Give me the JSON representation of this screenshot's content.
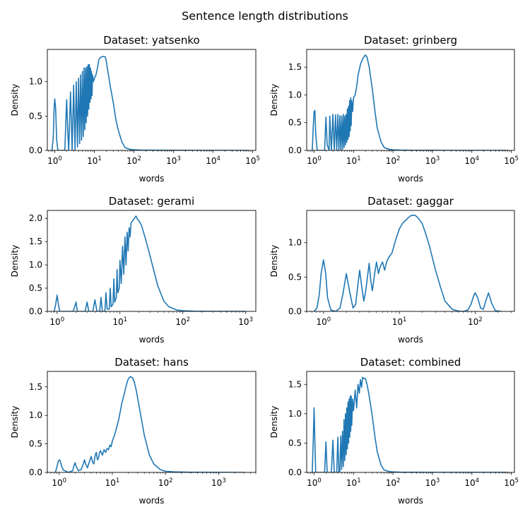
{
  "suptitle": "Sentence length distributions",
  "chart_data": [
    {
      "type": "line",
      "title": "Dataset: yatsenko",
      "xlabel": "words",
      "ylabel": "Density",
      "xscale": "log",
      "xlim": [
        0.65,
        120000
      ],
      "ylim": [
        0,
        1.47
      ],
      "xticks": [
        1,
        10,
        100,
        1000,
        10000,
        100000
      ],
      "yticks": [
        0.0,
        0.5,
        1.0
      ],
      "color": "#1f77b4",
      "grid": false,
      "series": [
        {
          "x": [
            0.85,
            0.92,
            0.96,
            1.0,
            1.05,
            1.12,
            1.2,
            1.5,
            1.8,
            1.9,
            2.0,
            2.12,
            2.25,
            2.5,
            2.75,
            3.0,
            3.25,
            3.5,
            3.75,
            4.0,
            4.25,
            4.5,
            4.75,
            5.0,
            5.25,
            5.5,
            5.75,
            6.0,
            6.25,
            6.5,
            6.75,
            7.0,
            7.25,
            7.5,
            7.75,
            8.0,
            8.25,
            8.5,
            8.75,
            9.0,
            9.5,
            10.0,
            11,
            12,
            13,
            14,
            15,
            17,
            19,
            20,
            22,
            25,
            30,
            35,
            40,
            50,
            60,
            80,
            100,
            150,
            300,
            1000,
            10000,
            80000
          ],
          "y": [
            0.0,
            0.2,
            0.6,
            0.75,
            0.62,
            0.15,
            0.0,
            0.0,
            0.0,
            0.4,
            0.74,
            0.3,
            0.0,
            0.85,
            0.0,
            0.95,
            0.0,
            1.0,
            0.05,
            1.05,
            0.1,
            1.1,
            0.15,
            1.15,
            0.2,
            1.2,
            0.3,
            1.2,
            0.4,
            1.22,
            0.5,
            1.25,
            0.6,
            1.25,
            0.7,
            1.2,
            0.75,
            1.15,
            0.8,
            1.1,
            1.0,
            1.05,
            1.1,
            1.2,
            1.32,
            1.35,
            1.36,
            1.37,
            1.36,
            1.3,
            1.15,
            0.95,
            0.7,
            0.45,
            0.3,
            0.12,
            0.04,
            0.015,
            0.01,
            0.005,
            0.003,
            0.002,
            0.001,
            0.001
          ]
        }
      ]
    },
    {
      "type": "line",
      "title": "Dataset: grinberg",
      "xlabel": "words",
      "ylabel": "Density",
      "xscale": "log",
      "xlim": [
        0.65,
        120000
      ],
      "ylim": [
        0,
        1.82
      ],
      "xticks": [
        1,
        10,
        100,
        1000,
        10000,
        100000
      ],
      "yticks": [
        0.0,
        0.5,
        1.0,
        1.5
      ],
      "color": "#1f77b4",
      "grid": false,
      "series": [
        {
          "x": [
            0.9,
            0.95,
            1.0,
            1.05,
            1.1,
            1.2,
            1.6,
            1.85,
            2.0,
            2.15,
            2.4,
            2.5,
            2.75,
            3.0,
            3.25,
            3.5,
            3.75,
            4.0,
            4.25,
            4.5,
            4.75,
            5.0,
            5.25,
            5.5,
            5.75,
            6.0,
            6.25,
            6.5,
            6.75,
            7.0,
            7.25,
            7.5,
            7.75,
            8.0,
            8.25,
            8.5,
            8.75,
            9.0,
            9.5,
            10.0,
            11,
            12,
            13,
            15,
            17,
            19,
            20,
            22,
            25,
            30,
            35,
            40,
            50,
            60,
            80,
            100,
            150,
            300,
            1000,
            10000,
            80000
          ],
          "y": [
            0.0,
            0.4,
            0.7,
            0.72,
            0.3,
            0.0,
            0.0,
            0.0,
            0.6,
            0.1,
            0.0,
            0.62,
            0.0,
            0.65,
            0.0,
            0.64,
            0.0,
            0.65,
            0.0,
            0.63,
            0.0,
            0.62,
            0.02,
            0.65,
            0.05,
            0.62,
            0.1,
            0.65,
            0.15,
            0.75,
            0.2,
            0.8,
            0.25,
            0.9,
            0.35,
            0.95,
            0.45,
            0.9,
            0.7,
            0.95,
            1.0,
            1.15,
            1.35,
            1.55,
            1.65,
            1.7,
            1.72,
            1.68,
            1.5,
            1.1,
            0.7,
            0.4,
            0.15,
            0.05,
            0.02,
            0.01,
            0.005,
            0.003,
            0.002,
            0.001,
            0.001
          ]
        }
      ]
    },
    {
      "type": "line",
      "title": "Dataset: gerami",
      "xlabel": "words",
      "ylabel": "Density",
      "xscale": "log",
      "xlim": [
        0.7,
        1450
      ],
      "ylim": [
        0,
        2.17
      ],
      "xticks": [
        1,
        10,
        100,
        1000
      ],
      "yticks": [
        0.0,
        0.5,
        1.0,
        1.5,
        2.0
      ],
      "color": "#1f77b4",
      "grid": false,
      "series": [
        {
          "x": [
            0.9,
            0.95,
            1.0,
            1.05,
            1.1,
            1.8,
            1.95,
            2.0,
            2.1,
            2.8,
            3.0,
            3.2,
            3.7,
            4.0,
            4.3,
            4.75,
            5.0,
            5.25,
            5.75,
            6.0,
            6.25,
            6.75,
            7.0,
            7.25,
            7.75,
            8.0,
            8.25,
            8.75,
            9.0,
            9.25,
            9.75,
            10.0,
            10.5,
            11,
            11.5,
            12,
            12.5,
            13,
            13.5,
            14,
            14.5,
            15,
            16,
            17,
            18,
            19,
            20,
            22,
            25,
            30,
            35,
            40,
            50,
            60,
            80,
            100,
            150,
            300,
            1000
          ],
          "y": [
            0.0,
            0.15,
            0.35,
            0.15,
            0.0,
            0.0,
            0.15,
            0.2,
            0.0,
            0.0,
            0.2,
            0.0,
            0.0,
            0.25,
            0.0,
            0.0,
            0.3,
            0.0,
            0.0,
            0.4,
            0.05,
            0.05,
            0.5,
            0.1,
            0.15,
            0.7,
            0.2,
            0.3,
            0.9,
            0.4,
            0.5,
            1.1,
            0.6,
            1.4,
            0.8,
            1.6,
            1.0,
            1.7,
            1.3,
            1.8,
            1.6,
            1.9,
            1.95,
            2.0,
            2.05,
            1.98,
            1.95,
            1.85,
            1.6,
            1.2,
            0.85,
            0.55,
            0.22,
            0.1,
            0.03,
            0.015,
            0.005,
            0.002,
            0.001
          ]
        }
      ]
    },
    {
      "type": "line",
      "title": "Dataset: gaggar",
      "xlabel": "words",
      "ylabel": "Density",
      "xscale": "log",
      "xlim": [
        0.6,
        330
      ],
      "ylim": [
        0,
        1.47
      ],
      "xticks": [
        1,
        10,
        100
      ],
      "yticks": [
        0.0,
        0.5,
        1.0
      ],
      "color": "#1f77b4",
      "grid": false,
      "series": [
        {
          "x": [
            0.75,
            0.82,
            0.88,
            0.93,
            1.0,
            1.07,
            1.13,
            1.25,
            1.45,
            1.65,
            1.8,
            2.0,
            2.2,
            2.45,
            2.65,
            2.85,
            3.0,
            3.2,
            3.4,
            3.6,
            3.8,
            4.0,
            4.2,
            4.4,
            4.6,
            4.8,
            5.0,
            5.3,
            5.6,
            6.0,
            6.4,
            6.8,
            7.2,
            8.0,
            9.0,
            10,
            11,
            12,
            13,
            14,
            15,
            16,
            17,
            18,
            20,
            22,
            25,
            30,
            35,
            40,
            50,
            60,
            70,
            80,
            88,
            95,
            100,
            108,
            118,
            128,
            138,
            150,
            165,
            185,
            220
          ],
          "y": [
            0.0,
            0.05,
            0.25,
            0.55,
            0.75,
            0.55,
            0.2,
            0.02,
            0.0,
            0.05,
            0.25,
            0.55,
            0.3,
            0.05,
            0.1,
            0.4,
            0.6,
            0.35,
            0.15,
            0.3,
            0.5,
            0.7,
            0.45,
            0.3,
            0.45,
            0.6,
            0.72,
            0.55,
            0.65,
            0.72,
            0.6,
            0.72,
            0.78,
            0.85,
            1.05,
            1.2,
            1.28,
            1.32,
            1.36,
            1.39,
            1.4,
            1.4,
            1.38,
            1.35,
            1.28,
            1.15,
            0.95,
            0.6,
            0.35,
            0.15,
            0.03,
            0.005,
            0.0,
            0.02,
            0.1,
            0.22,
            0.27,
            0.2,
            0.05,
            0.03,
            0.15,
            0.27,
            0.12,
            0.01,
            0.0
          ]
        }
      ]
    },
    {
      "type": "line",
      "title": "Dataset: hans",
      "xlabel": "words",
      "ylabel": "Density",
      "xscale": "log",
      "xlim": [
        0.6,
        5000
      ],
      "ylim": [
        0,
        1.77
      ],
      "xticks": [
        1,
        10,
        100,
        1000
      ],
      "yticks": [
        0.0,
        0.5,
        1.0,
        1.5
      ],
      "color": "#1f77b4",
      "grid": false,
      "series": [
        {
          "x": [
            0.85,
            0.9,
            0.95,
            1.0,
            1.05,
            1.1,
            1.2,
            1.5,
            1.8,
            1.9,
            2.0,
            2.1,
            2.3,
            2.6,
            2.85,
            3.0,
            3.15,
            3.4,
            3.75,
            4.0,
            4.25,
            4.5,
            4.75,
            5.0,
            5.25,
            5.5,
            5.75,
            6.0,
            6.5,
            7.0,
            7.5,
            8.0,
            8.5,
            9.0,
            9.5,
            10,
            11,
            12,
            13,
            14,
            15,
            17,
            19,
            20,
            22,
            24,
            26,
            28,
            30,
            35,
            40,
            50,
            60,
            80,
            100,
            150,
            300,
            1000,
            3000
          ],
          "y": [
            0.0,
            0.08,
            0.18,
            0.22,
            0.2,
            0.12,
            0.04,
            0.0,
            0.03,
            0.12,
            0.17,
            0.1,
            0.03,
            0.05,
            0.15,
            0.22,
            0.15,
            0.08,
            0.2,
            0.28,
            0.18,
            0.15,
            0.3,
            0.35,
            0.22,
            0.25,
            0.35,
            0.38,
            0.3,
            0.4,
            0.35,
            0.42,
            0.4,
            0.48,
            0.45,
            0.55,
            0.65,
            0.78,
            0.9,
            1.05,
            1.2,
            1.4,
            1.58,
            1.64,
            1.68,
            1.66,
            1.58,
            1.45,
            1.3,
            0.95,
            0.65,
            0.3,
            0.15,
            0.05,
            0.02,
            0.008,
            0.003,
            0.001,
            0.0
          ]
        }
      ]
    },
    {
      "type": "line",
      "title": "Dataset: combined",
      "xlabel": "words",
      "ylabel": "Density",
      "xscale": "log",
      "xlim": [
        0.65,
        120000
      ],
      "ylim": [
        0,
        1.72
      ],
      "xticks": [
        1,
        10,
        100,
        1000,
        10000,
        100000
      ],
      "yticks": [
        0.0,
        0.5,
        1.0,
        1.5
      ],
      "color": "#1f77b4",
      "grid": false,
      "series": [
        {
          "x": [
            0.9,
            0.95,
            1.0,
            1.05,
            1.1,
            1.85,
            2.0,
            2.15,
            2.75,
            3.0,
            3.25,
            3.75,
            4.0,
            4.25,
            4.5,
            4.75,
            5.0,
            5.25,
            5.5,
            5.75,
            6.0,
            6.25,
            6.5,
            6.75,
            7.0,
            7.25,
            7.5,
            7.75,
            8.0,
            8.25,
            8.5,
            8.75,
            9.0,
            9.5,
            10,
            11,
            12,
            13,
            14,
            15,
            16,
            17,
            18,
            20,
            22,
            25,
            30,
            35,
            40,
            50,
            60,
            80,
            100,
            150,
            300,
            1000,
            10000,
            80000
          ],
          "y": [
            0.0,
            0.5,
            1.1,
            0.5,
            0.0,
            0.0,
            0.52,
            0.0,
            0.0,
            0.55,
            0.0,
            0.0,
            0.6,
            0.0,
            0.02,
            0.62,
            0.05,
            0.7,
            0.1,
            0.9,
            0.2,
            1.0,
            0.3,
            1.1,
            0.4,
            1.2,
            0.5,
            1.25,
            0.6,
            1.3,
            0.7,
            1.3,
            0.8,
            1.25,
            1.05,
            1.4,
            1.1,
            1.5,
            1.35,
            1.58,
            1.45,
            1.62,
            1.6,
            1.6,
            1.5,
            1.3,
            0.95,
            0.6,
            0.35,
            0.12,
            0.04,
            0.015,
            0.008,
            0.004,
            0.002,
            0.001,
            0.001,
            0.001
          ]
        }
      ]
    }
  ]
}
